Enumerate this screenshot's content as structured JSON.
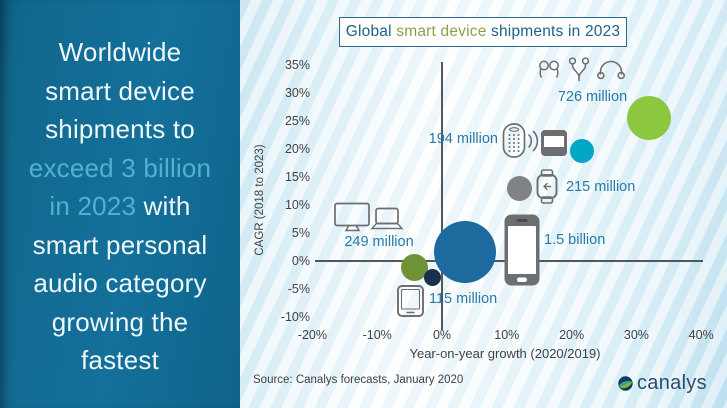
{
  "colors": {
    "panel_bg": "#11688d",
    "panel_text": "#eef6f9",
    "panel_hl": "#4fb2d1",
    "chart_tint": "#cfe9f3",
    "title_text": "#1e6186",
    "title_hl": "#8ea04b",
    "label_blue": "#2779a8",
    "tick_gray": "#424242",
    "axis_line": "#55565a",
    "icon_gray": "#6d6e71",
    "logo_navy": "#2e4d6b",
    "source_gray": "#3f3f3f"
  },
  "left_panel": {
    "headline_lines": [
      [
        {
          "t": "Worldwide",
          "hl": false
        }
      ],
      [
        {
          "t": "smart device",
          "hl": false
        }
      ],
      [
        {
          "t": "shipments to",
          "hl": false
        }
      ],
      [
        {
          "t": "exceed 3 billion",
          "hl": true
        }
      ],
      [
        {
          "t": "in 2023 ",
          "hl": true
        },
        {
          "t": "with",
          "hl": false
        }
      ],
      [
        {
          "t": "smart personal",
          "hl": false
        }
      ],
      [
        {
          "t": "audio category",
          "hl": false
        }
      ],
      [
        {
          "t": "growing the",
          "hl": false
        }
      ],
      [
        {
          "t": "fastest",
          "hl": false
        }
      ]
    ]
  },
  "chart_data": {
    "type": "bubble",
    "title": {
      "prefix": "Global ",
      "highlight": "smart device",
      "suffix": " shipments in 2023"
    },
    "xlabel": "Year-on-year growth (2020/2019)",
    "ylabel": "CAGR (2018 to 2023)",
    "x_ticks": [
      "-20%",
      "-10%",
      "0%",
      "10%",
      "20%",
      "30%",
      "40%"
    ],
    "y_ticks": [
      "35%",
      "30%",
      "25%",
      "20%",
      "15%",
      "10%",
      "5%",
      "0%",
      "-5%",
      "-10%"
    ],
    "xlim": [
      -25,
      44
    ],
    "ylim": [
      -12.5,
      36
    ],
    "grid": false,
    "series": [
      {
        "id": "personal-audio",
        "label": "726 million",
        "x": 32,
        "y": 25.5,
        "r": 22,
        "color": "#8dc63f",
        "icons": [
          "earbuds-icon",
          "earphones-icon",
          "headphones-icon"
        ]
      },
      {
        "id": "speakers-streamers",
        "label": "194 million",
        "x": 21.6,
        "y": 19.6,
        "r": 12,
        "color": "#00a7c4",
        "icons": [
          "smart-speaker-icon",
          "media-streamer-icon"
        ]
      },
      {
        "id": "wearables",
        "label": "215 million",
        "x": 11.9,
        "y": 13,
        "r": 12.5,
        "color": "#808285",
        "icons": [
          "smartwatch-icon"
        ]
      },
      {
        "id": "smartphones",
        "label": "1.5 billion",
        "x": 3.5,
        "y": 1.6,
        "r": 31,
        "color": "#1c6a9e",
        "icons": [
          "smartphone-icon"
        ]
      },
      {
        "id": "pcs",
        "label": "249 million",
        "x": -4.3,
        "y": -1.1,
        "r": 13.5,
        "color": "#6f9334",
        "icons": [
          "desktop-icon",
          "laptop-icon"
        ]
      },
      {
        "id": "tablets",
        "label": "115 million",
        "x": -1.5,
        "y": -3,
        "r": 8.5,
        "color": "#17324d",
        "icons": [
          "tablet-icon"
        ]
      }
    ]
  },
  "footer": {
    "source": "Source: Canalys forecasts, January 2020",
    "logo_text": "canalys"
  }
}
